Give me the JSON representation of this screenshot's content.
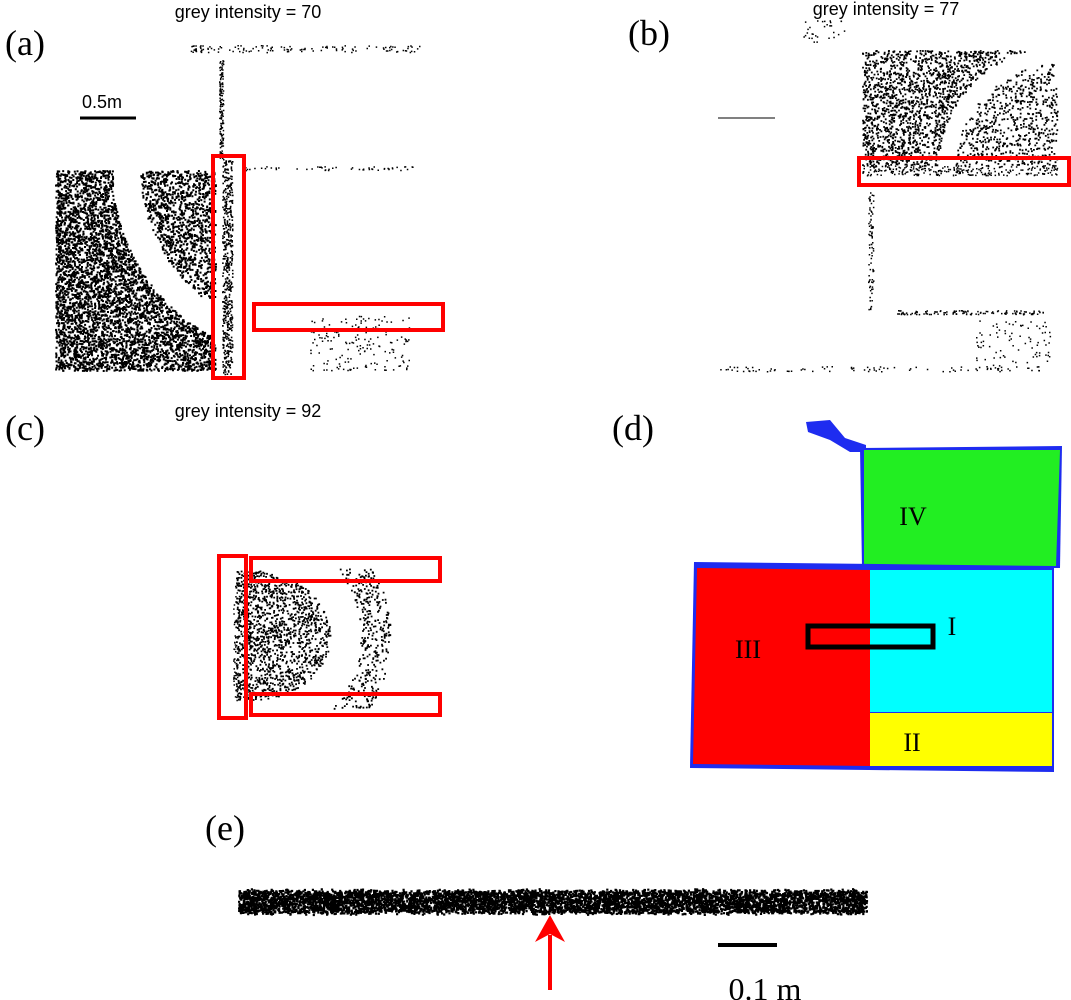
{
  "panels": [
    {
      "label": "(a)",
      "caption": "grey intensity = 70",
      "scale": "0.5m"
    },
    {
      "label": "(b)",
      "caption": "grey intensity = 77"
    },
    {
      "label": "(c)",
      "caption": "grey intensity = 92"
    },
    {
      "label": "(d)",
      "regions": [
        "IV",
        "I",
        "III",
        "II"
      ]
    },
    {
      "label": "(e)",
      "scale": "0.1 m"
    }
  ]
}
